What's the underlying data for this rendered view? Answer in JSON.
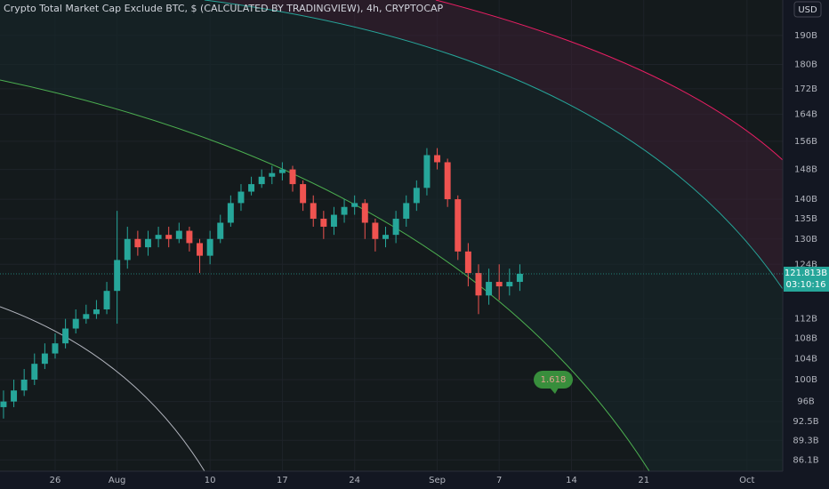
{
  "chart_data": {
    "type": "candlestick",
    "title": "Crypto Total Market Cap Exclude BTC, $ (CALCULATED BY TRADINGVIEW), 4h, CRYPTOCAP",
    "currency": "USD",
    "x": [
      -5,
      -4,
      -3,
      -2,
      -1,
      0,
      1,
      2,
      3,
      4,
      5,
      6,
      7,
      8,
      9,
      10,
      11,
      12,
      13,
      14,
      15,
      16,
      17,
      18,
      19,
      20,
      21,
      22,
      23,
      24,
      25,
      26,
      27,
      28,
      29,
      30,
      31,
      32,
      33,
      34,
      35,
      36,
      37,
      38,
      39,
      40,
      41,
      42,
      43,
      44,
      45
    ],
    "open": [
      95,
      96,
      98,
      100,
      103,
      105,
      107,
      110,
      112,
      113,
      114,
      118,
      125,
      130,
      128,
      130,
      131,
      130,
      132,
      129,
      126,
      130,
      134,
      139,
      142,
      144,
      146,
      147,
      148,
      144,
      139,
      135,
      133,
      136,
      138,
      139,
      134,
      130,
      131,
      135,
      139,
      143,
      152,
      150,
      140,
      127,
      122,
      117,
      120,
      119,
      120
    ],
    "high": [
      98,
      100,
      102,
      105,
      107,
      109,
      112,
      114,
      115,
      116,
      120,
      137,
      133,
      132,
      132,
      133,
      133,
      134,
      133,
      130,
      132,
      136,
      141,
      144,
      146,
      148,
      149,
      150,
      149,
      145,
      141,
      137,
      138,
      140,
      141,
      140,
      135,
      133,
      137,
      141,
      145,
      154,
      154,
      151,
      141,
      129,
      124,
      123,
      124,
      123,
      124
    ],
    "low": [
      93,
      95,
      97,
      99,
      102,
      104,
      106,
      109,
      111,
      112,
      113,
      111,
      123,
      126,
      126,
      128,
      128,
      129,
      127,
      122,
      124,
      129,
      133,
      137,
      141,
      143,
      144,
      145,
      142,
      137,
      133,
      130,
      131,
      134,
      136,
      130,
      127,
      128,
      129,
      133,
      137,
      141,
      148,
      138,
      125,
      119,
      113,
      115,
      116,
      117,
      118
    ],
    "close": [
      96,
      98,
      100,
      103,
      105,
      107,
      110,
      112,
      113,
      114,
      118,
      125,
      130,
      128,
      130,
      131,
      130,
      132,
      129,
      126,
      130,
      134,
      139,
      142,
      144,
      146,
      147,
      148,
      144,
      139,
      135,
      133,
      136,
      138,
      139,
      134,
      130,
      131,
      135,
      139,
      143,
      152,
      150,
      140,
      127,
      122,
      117,
      120,
      119,
      120,
      121.813
    ],
    "up_color": "#26a69a",
    "down_color": "#ef5350",
    "log_scale": true,
    "grid": true,
    "xlim": [
      -5.34,
      70.46
    ],
    "xticks": [
      {
        "value": 0,
        "label": "26"
      },
      {
        "value": 6,
        "label": "Aug"
      },
      {
        "value": 15,
        "label": "10"
      },
      {
        "value": 22,
        "label": "17"
      },
      {
        "value": 29,
        "label": "24"
      },
      {
        "value": 37,
        "label": "Sep"
      },
      {
        "value": 43,
        "label": "7"
      },
      {
        "value": 50,
        "label": "14"
      },
      {
        "value": 57,
        "label": "21"
      },
      {
        "value": 67,
        "label": "Oct"
      }
    ],
    "ylim": [
      84.3,
      203
    ],
    "yticks": [
      {
        "value": 190,
        "label": "190B"
      },
      {
        "value": 180,
        "label": "180B"
      },
      {
        "value": 172,
        "label": "172B"
      },
      {
        "value": 164,
        "label": "164B"
      },
      {
        "value": 156,
        "label": "156B"
      },
      {
        "value": 148,
        "label": "148B"
      },
      {
        "value": 140,
        "label": "140B"
      },
      {
        "value": 135,
        "label": "135B"
      },
      {
        "value": 130,
        "label": "130B"
      },
      {
        "value": 124,
        "label": "124B"
      },
      {
        "value": 112,
        "label": "112B"
      },
      {
        "value": 108,
        "label": "108B"
      },
      {
        "value": 104,
        "label": "104B"
      },
      {
        "value": 100,
        "label": "100B"
      },
      {
        "value": 96,
        "label": "96B"
      },
      {
        "value": 92.5,
        "label": "92.5B"
      },
      {
        "value": 89.3,
        "label": "89.3B"
      },
      {
        "value": 86.1,
        "label": "86.1B"
      }
    ],
    "last_price": {
      "value": 121.813,
      "label": "121.813B"
    },
    "countdown": "03:10:16",
    "annotation": "1.618"
  }
}
